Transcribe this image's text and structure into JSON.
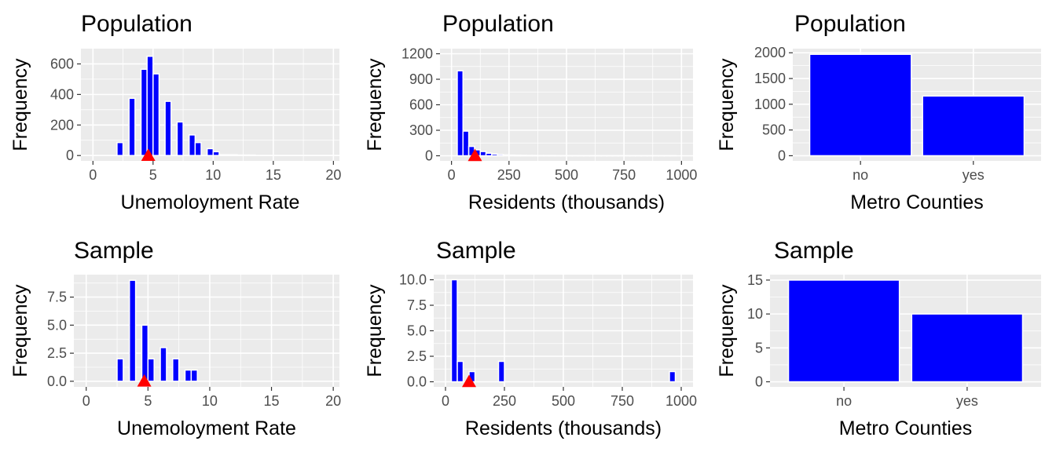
{
  "colors": {
    "panel_bg": "#ebebeb",
    "grid": "#ffffff",
    "bar_fill": "#0000ff",
    "bar_stroke": "#ffffff",
    "mean_marker": "#ff0000",
    "tick_text": "#4d4d4d",
    "tick_mark": "#333333"
  },
  "chart_data": [
    {
      "type": "bar",
      "title": "Population",
      "xlabel": "Unemoloyment Rate",
      "ylabel": "Frequency",
      "xlim": [
        -1,
        20.5
      ],
      "ylim": [
        -35,
        700
      ],
      "xticks": [
        0,
        5,
        10,
        15,
        20
      ],
      "xtick_labels": [
        "0",
        "5",
        "10",
        "15",
        "20"
      ],
      "yticks": [
        0,
        200,
        400,
        600
      ],
      "ytick_labels": [
        "0",
        "200",
        "400",
        "600"
      ],
      "bins": {
        "start": 1.5,
        "width": 0.5
      },
      "values": [
        0,
        85,
        0,
        375,
        0,
        565,
        650,
        535,
        0,
        355,
        0,
        220,
        0,
        135,
        85,
        0,
        45,
        25,
        5,
        5,
        5,
        3,
        3,
        3,
        0,
        0,
        0,
        0,
        0,
        0,
        0,
        0,
        0,
        0,
        0,
        0,
        0,
        0,
        0,
        0,
        0,
        0,
        0,
        0,
        0,
        0,
        0,
        1
      ],
      "mean_marker": {
        "x": 4.6,
        "y": 0
      },
      "grid": true,
      "legend": "none"
    },
    {
      "type": "bar",
      "title": "Population",
      "xlabel": "Residents (thousands)",
      "ylabel": "Frequency",
      "xlim": [
        -50,
        1050
      ],
      "ylim": [
        -60,
        1260
      ],
      "xticks": [
        0,
        250,
        500,
        750,
        1000
      ],
      "xtick_labels": [
        "0",
        "250",
        "500",
        "750",
        "1000"
      ],
      "yticks": [
        0,
        300,
        600,
        900,
        1200
      ],
      "ytick_labels": [
        "0",
        "300",
        "600",
        "900",
        "1200"
      ],
      "bins": {
        "start": 25,
        "width": 25
      },
      "values": [
        1000,
        290,
        110,
        70,
        50,
        30,
        20,
        15,
        10,
        8,
        6,
        5,
        4,
        4,
        3,
        3,
        3,
        2,
        2,
        2,
        2,
        1,
        1,
        1,
        1,
        1,
        1,
        1,
        1,
        1,
        1,
        1,
        1,
        1,
        1,
        1,
        1,
        1
      ],
      "mean_marker": {
        "x": 102,
        "y": 0
      },
      "grid": true,
      "legend": "none"
    },
    {
      "type": "bar",
      "title": "Population",
      "xlabel": "Metro Counties",
      "ylabel": "Frequency",
      "ylim": [
        -100,
        2080
      ],
      "categories": [
        "no",
        "yes"
      ],
      "values": [
        1970,
        1160
      ],
      "yticks": [
        0,
        500,
        1000,
        1500,
        2000
      ],
      "ytick_labels": [
        "0",
        "500",
        "1000",
        "1500",
        "2000"
      ],
      "grid": true,
      "legend": "none"
    },
    {
      "type": "bar",
      "title": "Sample",
      "xlabel": "Unemoloyment Rate",
      "ylabel": "Frequency",
      "xlim": [
        -1,
        20.5
      ],
      "ylim": [
        -0.5,
        9.5
      ],
      "xticks": [
        0,
        5,
        10,
        15,
        20
      ],
      "xtick_labels": [
        "0",
        "5",
        "10",
        "15",
        "20"
      ],
      "yticks": [
        0,
        2.5,
        5,
        7.5
      ],
      "ytick_labels": [
        "0.0",
        "2.5",
        "5.0",
        "7.5"
      ],
      "bins": {
        "start": 2.5,
        "width": 0.5
      },
      "values": [
        2,
        0,
        9,
        0,
        5,
        2,
        0,
        3,
        0,
        2,
        0,
        1,
        1
      ],
      "mean_marker": {
        "x": 4.7,
        "y": 0
      },
      "grid": true,
      "legend": "none"
    },
    {
      "type": "bar",
      "title": "Sample",
      "xlabel": "Residents (thousands)",
      "ylabel": "Frequency",
      "xlim": [
        -50,
        1050
      ],
      "ylim": [
        -0.5,
        10.5
      ],
      "xticks": [
        0,
        250,
        500,
        750,
        1000
      ],
      "xtick_labels": [
        "0",
        "250",
        "500",
        "750",
        "1000"
      ],
      "yticks": [
        0,
        2.5,
        5,
        7.5,
        10
      ],
      "ytick_labels": [
        "0.0",
        "2.5",
        "5.0",
        "7.5",
        "10.0"
      ],
      "bins": {
        "start": 25,
        "width": 25
      },
      "values": [
        10,
        2,
        0,
        1,
        0,
        0,
        0,
        0,
        2,
        0,
        0,
        0,
        0,
        0,
        0,
        0,
        0,
        0,
        0,
        0,
        0,
        0,
        0,
        0,
        0,
        0,
        0,
        0,
        0,
        0,
        0,
        0,
        0,
        0,
        0,
        0,
        0,
        1
      ],
      "mean_marker": {
        "x": 100,
        "y": 0
      },
      "grid": true,
      "legend": "none"
    },
    {
      "type": "bar",
      "title": "Sample",
      "xlabel": "Metro Counties",
      "ylabel": "Frequency",
      "ylim": [
        -0.75,
        15.8
      ],
      "categories": [
        "no",
        "yes"
      ],
      "values": [
        15,
        10
      ],
      "yticks": [
        0,
        5,
        10,
        15
      ],
      "ytick_labels": [
        "0",
        "5",
        "10",
        "15"
      ],
      "grid": true,
      "legend": "none"
    }
  ]
}
